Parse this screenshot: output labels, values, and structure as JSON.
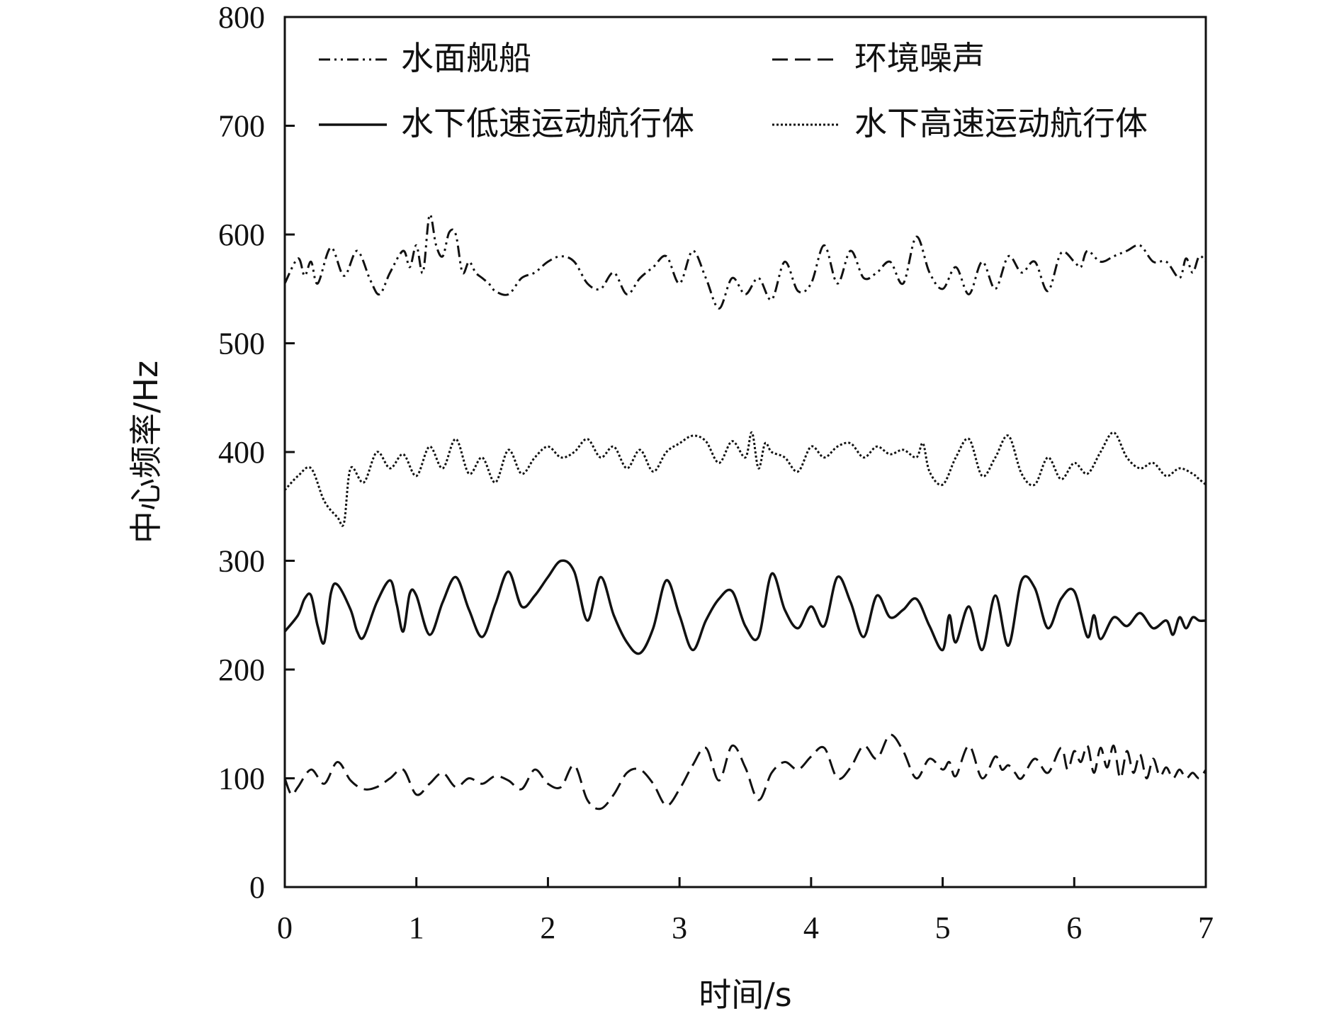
{
  "chart_data": {
    "type": "line",
    "xlabel": "时间/s",
    "ylabel": "中心频率/Hz",
    "xlim": [
      0,
      7
    ],
    "ylim": [
      0,
      800
    ],
    "x_ticks": [
      "0",
      "1",
      "2",
      "3",
      "4",
      "5",
      "6",
      "7"
    ],
    "y_ticks": [
      "0",
      "100",
      "200",
      "300",
      "400",
      "500",
      "600",
      "700",
      "800"
    ],
    "grid": false,
    "legend_position": "top",
    "series": [
      {
        "name": "水面舰船",
        "style": "dash-dot-dot",
        "x": [
          0,
          0.1,
          0.15,
          0.2,
          0.25,
          0.35,
          0.45,
          0.55,
          0.65,
          0.72,
          0.8,
          0.9,
          0.95,
          1.0,
          1.05,
          1.1,
          1.15,
          1.2,
          1.25,
          1.3,
          1.35,
          1.4,
          1.45,
          1.5,
          1.55,
          1.6,
          1.7,
          1.8,
          1.9,
          2.0,
          2.1,
          2.2,
          2.3,
          2.4,
          2.5,
          2.6,
          2.7,
          2.8,
          2.9,
          3.0,
          3.1,
          3.2,
          3.3,
          3.4,
          3.5,
          3.6,
          3.7,
          3.8,
          3.9,
          4.0,
          4.1,
          4.2,
          4.3,
          4.4,
          4.5,
          4.6,
          4.7,
          4.8,
          4.9,
          5.0,
          5.1,
          5.2,
          5.3,
          5.4,
          5.5,
          5.6,
          5.7,
          5.8,
          5.9,
          6.0,
          6.05,
          6.1,
          6.2,
          6.3,
          6.4,
          6.5,
          6.6,
          6.7,
          6.8,
          6.85,
          6.9,
          6.95,
          7.0
        ],
        "values": [
          555,
          578,
          562,
          575,
          555,
          588,
          562,
          585,
          558,
          545,
          565,
          585,
          570,
          590,
          565,
          618,
          590,
          580,
          602,
          600,
          565,
          575,
          565,
          560,
          555,
          548,
          545,
          560,
          565,
          575,
          580,
          575,
          555,
          550,
          565,
          545,
          560,
          570,
          580,
          555,
          585,
          560,
          532,
          560,
          545,
          560,
          540,
          575,
          548,
          555,
          590,
          555,
          585,
          560,
          565,
          575,
          555,
          598,
          565,
          550,
          570,
          545,
          575,
          550,
          580,
          565,
          575,
          548,
          583,
          575,
          570,
          585,
          575,
          580,
          585,
          590,
          575,
          575,
          560,
          578,
          565,
          580,
          575
        ]
      },
      {
        "name": "环境噪声",
        "style": "dashed",
        "x": [
          0,
          0.05,
          0.1,
          0.2,
          0.3,
          0.4,
          0.5,
          0.6,
          0.7,
          0.8,
          0.9,
          1.0,
          1.1,
          1.2,
          1.3,
          1.4,
          1.5,
          1.6,
          1.7,
          1.8,
          1.9,
          2.0,
          2.1,
          2.2,
          2.3,
          2.4,
          2.5,
          2.6,
          2.7,
          2.8,
          2.9,
          3.0,
          3.1,
          3.2,
          3.3,
          3.4,
          3.5,
          3.6,
          3.7,
          3.8,
          3.9,
          4.0,
          4.1,
          4.2,
          4.3,
          4.4,
          4.5,
          4.6,
          4.7,
          4.8,
          4.9,
          5.0,
          5.05,
          5.1,
          5.2,
          5.3,
          5.4,
          5.45,
          5.5,
          5.55,
          5.6,
          5.7,
          5.8,
          5.9,
          5.95,
          6.0,
          6.05,
          6.1,
          6.15,
          6.2,
          6.25,
          6.3,
          6.35,
          6.4,
          6.45,
          6.5,
          6.55,
          6.6,
          6.65,
          6.7,
          6.75,
          6.8,
          6.85,
          6.9,
          6.95,
          7.0
        ],
        "values": [
          100,
          85,
          92,
          108,
          95,
          115,
          98,
          90,
          92,
          100,
          108,
          85,
          95,
          105,
          92,
          100,
          95,
          102,
          98,
          90,
          108,
          95,
          92,
          112,
          80,
          72,
          85,
          105,
          108,
          95,
          75,
          90,
          112,
          128,
          98,
          130,
          110,
          80,
          105,
          115,
          108,
          120,
          128,
          100,
          110,
          130,
          118,
          140,
          125,
          100,
          118,
          108,
          115,
          102,
          130,
          100,
          120,
          108,
          112,
          105,
          100,
          118,
          105,
          128,
          108,
          125,
          115,
          130,
          105,
          128,
          110,
          130,
          100,
          125,
          105,
          122,
          100,
          118,
          102,
          110,
          100,
          108,
          100,
          105,
          100,
          108
        ]
      },
      {
        "name": "水下低速运动航行体",
        "style": "solid",
        "x": [
          0,
          0.1,
          0.15,
          0.2,
          0.25,
          0.3,
          0.35,
          0.4,
          0.5,
          0.55,
          0.6,
          0.7,
          0.8,
          0.85,
          0.9,
          0.95,
          1.0,
          1.1,
          1.2,
          1.3,
          1.4,
          1.5,
          1.6,
          1.7,
          1.8,
          1.9,
          2.0,
          2.1,
          2.2,
          2.3,
          2.4,
          2.5,
          2.6,
          2.7,
          2.8,
          2.9,
          3.0,
          3.1,
          3.2,
          3.3,
          3.4,
          3.5,
          3.6,
          3.7,
          3.8,
          3.9,
          4.0,
          4.1,
          4.2,
          4.3,
          4.4,
          4.5,
          4.6,
          4.7,
          4.8,
          4.9,
          5.0,
          5.05,
          5.1,
          5.2,
          5.3,
          5.4,
          5.5,
          5.6,
          5.7,
          5.8,
          5.9,
          6.0,
          6.1,
          6.15,
          6.2,
          6.3,
          6.4,
          6.5,
          6.6,
          6.7,
          6.75,
          6.8,
          6.85,
          6.9,
          6.95,
          7.0
        ],
        "values": [
          235,
          250,
          265,
          268,
          240,
          225,
          270,
          278,
          255,
          235,
          230,
          262,
          282,
          260,
          235,
          270,
          268,
          232,
          262,
          285,
          255,
          230,
          260,
          290,
          258,
          268,
          285,
          300,
          290,
          245,
          285,
          250,
          225,
          215,
          238,
          282,
          250,
          218,
          245,
          265,
          272,
          240,
          230,
          288,
          255,
          238,
          258,
          240,
          285,
          262,
          230,
          268,
          248,
          255,
          265,
          240,
          218,
          250,
          225,
          258,
          218,
          268,
          222,
          282,
          275,
          238,
          265,
          272,
          230,
          250,
          228,
          248,
          240,
          252,
          238,
          245,
          232,
          248,
          238,
          248,
          245,
          245
        ]
      },
      {
        "name": "水下高速运动航行体",
        "style": "dotted",
        "x": [
          0,
          0.1,
          0.2,
          0.3,
          0.4,
          0.45,
          0.5,
          0.6,
          0.7,
          0.8,
          0.9,
          1.0,
          1.1,
          1.2,
          1.3,
          1.4,
          1.5,
          1.6,
          1.7,
          1.8,
          1.9,
          2.0,
          2.1,
          2.2,
          2.3,
          2.4,
          2.5,
          2.6,
          2.7,
          2.8,
          2.9,
          3.0,
          3.1,
          3.2,
          3.3,
          3.4,
          3.5,
          3.55,
          3.6,
          3.65,
          3.7,
          3.8,
          3.9,
          4.0,
          4.1,
          4.2,
          4.3,
          4.4,
          4.5,
          4.6,
          4.7,
          4.8,
          4.85,
          4.9,
          5.0,
          5.1,
          5.2,
          5.3,
          5.4,
          5.5,
          5.6,
          5.7,
          5.8,
          5.9,
          6.0,
          6.1,
          6.2,
          6.3,
          6.4,
          6.5,
          6.6,
          6.7,
          6.8,
          6.9,
          6.95,
          7.0
        ],
        "values": [
          365,
          378,
          385,
          355,
          340,
          335,
          385,
          372,
          400,
          385,
          398,
          378,
          405,
          385,
          412,
          380,
          395,
          372,
          402,
          380,
          395,
          405,
          395,
          400,
          412,
          395,
          405,
          385,
          402,
          382,
          400,
          408,
          415,
          410,
          390,
          410,
          395,
          418,
          385,
          408,
          400,
          395,
          382,
          405,
          395,
          405,
          408,
          395,
          405,
          398,
          402,
          395,
          408,
          382,
          370,
          395,
          412,
          378,
          395,
          415,
          380,
          370,
          395,
          375,
          390,
          380,
          400,
          418,
          395,
          385,
          390,
          378,
          385,
          380,
          375,
          370
        ]
      }
    ]
  }
}
